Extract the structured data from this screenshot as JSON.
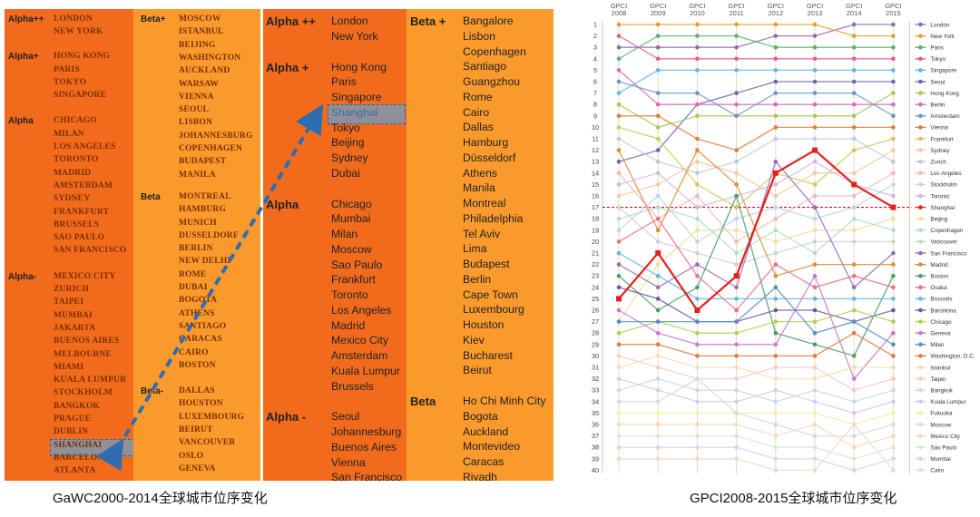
{
  "gawc": {
    "caption": "GaWC2000-2014全球城市位序变化",
    "y2000": {
      "col1": [
        {
          "tier": "Alpha++",
          "cities": [
            "LONDON",
            "NEW YORK"
          ]
        },
        {
          "tier": "Alpha+",
          "cities": [
            "HONG KONG",
            "PARIS",
            "TOKYO",
            "SINGAPORE"
          ]
        },
        {
          "tier": "Alpha",
          "cities": [
            "CHICAGO",
            "MILAN",
            "LOS ANGELES",
            "TORONTO",
            "MADRID",
            "AMSTERDAM",
            "SYDNEY",
            "FRANKFURT",
            "BRUSSELS",
            "SAO PAULO",
            "SAN FRANCISCO"
          ]
        },
        {
          "tier": "Alpha-",
          "cities": [
            "MEXICO CITY",
            "ZURICH",
            "TAIPEI",
            "MUMBAI",
            "JAKARTA",
            "BUENOS AIRES",
            "MELBOURNE",
            "MIAMI",
            "KUALA LUMPUR",
            "STOCKHOLM",
            "BANGKOK",
            "PRAGUE",
            "DUBLIN",
            "SHANGHAI",
            "BARCELONA",
            "ATLANTA"
          ]
        }
      ],
      "col2": [
        {
          "tier": "Beta+",
          "cities": [
            "MOSCOW",
            "ISTANBUL",
            "BEIJING",
            "WASHINGTON",
            "AUCKLAND",
            "WARSAW",
            "VIENNA",
            "SEOUL",
            "LISBON",
            "JOHANNESBURG",
            "COPENHAGEN",
            "BUDAPEST",
            "MANILA"
          ]
        },
        {
          "tier": "Beta",
          "cities": [
            "MONTREAL",
            "HAMBURG",
            "MUNICH",
            "DUSSELDORF",
            "BERLIN",
            "NEW DELHI",
            "ROME",
            "DUBAI",
            "BOGOTA",
            "ATHENS",
            "SANTIAGO",
            "CARACAS",
            "CAIRO",
            "BOSTON"
          ]
        },
        {
          "tier": "Beta-",
          "cities": [
            "DALLAS",
            "HOUSTON",
            "LUXEMBOURG",
            "BEIRUT",
            "VANCOUVER",
            "OSLO",
            "GENEVA"
          ]
        }
      ]
    },
    "y2014": {
      "col1": [
        {
          "tier": "Alpha ++",
          "cities": [
            "London",
            "New York"
          ]
        },
        {
          "tier": "Alpha +",
          "cities": [
            "Hong Kong",
            "Paris",
            "Singapore",
            "Shanghai",
            "Tokyo",
            "Beijing",
            "Sydney",
            "Dubai"
          ]
        },
        {
          "tier": "Alpha",
          "cities": [
            "Chicago",
            "Mumbai",
            "Milan",
            "Moscow",
            "Sao Paulo",
            "Frankfurt",
            "Toronto",
            "Los Angeles",
            "Madrid",
            "Mexico City",
            "Amsterdam",
            "Kuala Lumpur",
            "Brussels"
          ]
        },
        {
          "tier": "Alpha -",
          "cities": [
            "Seoul",
            "Johannesburg",
            "Buenos Aires",
            "Vienna",
            "San Francisco"
          ]
        }
      ],
      "col2": [
        {
          "tier": "Beta +",
          "cities": [
            "Bangalore",
            "Lisbon",
            "Copenhagen",
            "Santiago",
            "Guangzhou",
            "Rome",
            "Cairo",
            "Dallas",
            "Hamburg",
            "Düsseldorf",
            "Athens",
            "Manila",
            "Montreal",
            "Philadelphia",
            "Tel Aviv",
            "Lima",
            "Budapest",
            "Berlin",
            "Cape Town",
            "Luxembourg",
            "Houston",
            "Kiev",
            "Bucharest",
            "Beirut"
          ]
        },
        {
          "tier": "Beta",
          "cities": [
            "Ho Chi Minh City",
            "Bogota",
            "Auckland",
            "Montevideo",
            "Caracas",
            "Riyadh"
          ]
        }
      ]
    },
    "colors": {
      "dark": "#f26b1d",
      "light": "#fb9a2c",
      "highlight": "#909099",
      "arrow": "#2f6db0"
    }
  },
  "chart_data": {
    "type": "line",
    "caption": "GPCI2008-2015全球城市位序变化",
    "categories": [
      "GPCI 2008",
      "GPCI 2009",
      "GPCI 2010",
      "GPCI 2011",
      "GPCI 2012",
      "GPCI 2013",
      "GPCI 2014",
      "GPCI 2015"
    ],
    "ylim": [
      1,
      40
    ],
    "y_ticks": [
      1,
      2,
      3,
      4,
      5,
      6,
      7,
      8,
      9,
      10,
      11,
      12,
      13,
      14,
      15,
      16,
      17,
      18,
      19,
      20,
      21,
      22,
      23,
      24,
      25,
      26,
      27,
      28,
      29,
      30,
      31,
      32,
      33,
      34,
      35,
      36,
      37,
      38,
      39,
      40
    ],
    "reference_rank": 17,
    "legend_position": "right",
    "series": [
      {
        "name": "London",
        "color": "#8e6bb8",
        "values": [
          3,
          3,
          3,
          3,
          2,
          2,
          1,
          1
        ]
      },
      {
        "name": "New York",
        "color": "#e89a2c",
        "values": [
          1,
          1,
          1,
          1,
          1,
          1,
          2,
          2
        ]
      },
      {
        "name": "Paris",
        "color": "#57b36d",
        "values": [
          4,
          2,
          2,
          2,
          3,
          3,
          3,
          3
        ]
      },
      {
        "name": "Tokyo",
        "color": "#e45d8a",
        "values": [
          2,
          4,
          4,
          4,
          4,
          4,
          4,
          4
        ]
      },
      {
        "name": "Singapore",
        "color": "#5db7e8",
        "values": [
          7,
          5,
          5,
          5,
          5,
          5,
          5,
          5
        ]
      },
      {
        "name": "Seoul",
        "color": "#6a6ab0",
        "values": [
          13,
          12,
          8,
          7,
          6,
          6,
          6,
          6
        ]
      },
      {
        "name": "Hong Kong",
        "color": "#a6c94e",
        "values": [
          8,
          10,
          9,
          9,
          9,
          9,
          9,
          7
        ]
      },
      {
        "name": "Berlin",
        "color": "#d96bb5",
        "values": [
          5,
          8,
          8,
          8,
          8,
          8,
          8,
          8
        ]
      },
      {
        "name": "Amsterdam",
        "color": "#6c95c9",
        "values": [
          6,
          7,
          7,
          9,
          7,
          7,
          7,
          9
        ]
      },
      {
        "name": "Vienna",
        "color": "#e07a3c",
        "values": [
          9,
          9,
          11,
          12,
          10,
          10,
          10,
          10
        ]
      },
      {
        "name": "Frankfurt",
        "color": "#d4c75a",
        "values": [
          10,
          11,
          15,
          17,
          14,
          15,
          12,
          11
        ]
      },
      {
        "name": "Sydney",
        "color": "#f4c9a0",
        "values": [
          16,
          15,
          13,
          14,
          16,
          14,
          14,
          12
        ]
      },
      {
        "name": "Zurich",
        "color": "#c6c6dc",
        "values": [
          11,
          13,
          14,
          13,
          11,
          11,
          11,
          13
        ]
      },
      {
        "name": "Los Angeles",
        "color": "#f2b8b8",
        "values": [
          14,
          18,
          16,
          20,
          18,
          16,
          16,
          14
        ]
      },
      {
        "name": "Stockholm",
        "color": "#bcd4ea",
        "values": [
          19,
          16,
          20,
          18,
          17,
          18,
          17,
          15
        ]
      },
      {
        "name": "Toronto",
        "color": "#ccb8de",
        "values": [
          15,
          14,
          17,
          16,
          15,
          13,
          15,
          16
        ]
      },
      {
        "name": "Shanghai",
        "color": "#e2211c",
        "values": [
          25,
          21,
          26,
          23,
          14,
          12,
          15,
          17
        ]
      },
      {
        "name": "Beijing",
        "color": "#f0dda0",
        "values": [
          27,
          22,
          19,
          19,
          20,
          19,
          19,
          18
        ]
      },
      {
        "name": "Copenhagen",
        "color": "#b0dcc8",
        "values": [
          18,
          17,
          18,
          21,
          19,
          21,
          18,
          19
        ]
      },
      {
        "name": "Vancouver",
        "color": "#cfcfcf",
        "values": [
          17,
          20,
          21,
          22,
          21,
          20,
          20,
          20
        ]
      },
      {
        "name": "San Francisco",
        "color": "#9a6ab8",
        "values": [
          22,
          24,
          22,
          24,
          13,
          17,
          24,
          21
        ]
      },
      {
        "name": "Madrid",
        "color": "#e08a3c",
        "values": [
          12,
          19,
          12,
          15,
          23,
          22,
          22,
          22
        ]
      },
      {
        "name": "Boston",
        "color": "#4a9c6a",
        "values": [
          23,
          26,
          24,
          16,
          28,
          29,
          30,
          23
        ]
      },
      {
        "name": "Osaka",
        "color": "#e56f8e",
        "values": [
          20,
          18,
          23,
          26,
          22,
          24,
          23,
          24
        ]
      },
      {
        "name": "Brussels",
        "color": "#62b5e2",
        "values": [
          21,
          23,
          25,
          25,
          25,
          25,
          25,
          25
        ]
      },
      {
        "name": "Barcelona",
        "color": "#6a58a0",
        "values": [
          24,
          25,
          27,
          27,
          26,
          26,
          27,
          26
        ]
      },
      {
        "name": "Chicago",
        "color": "#b0d050",
        "values": [
          28,
          27,
          28,
          28,
          27,
          27,
          26,
          27
        ]
      },
      {
        "name": "Geneva",
        "color": "#c878c8",
        "values": [
          26,
          28,
          29,
          29,
          29,
          23,
          32,
          28
        ]
      },
      {
        "name": "Milan",
        "color": "#5a8ac8",
        "values": [
          27,
          27,
          27,
          27,
          24,
          28,
          27,
          29
        ]
      },
      {
        "name": "Washington, D.C.",
        "color": "#e07a3c",
        "values": [
          29,
          29,
          30,
          30,
          30,
          30,
          28,
          30
        ]
      },
      {
        "name": "Istanbul",
        "color": "#f0e0b0",
        "values": [
          31,
          30,
          31,
          31,
          32,
          32,
          31,
          31
        ]
      },
      {
        "name": "Taipei",
        "color": "#f8c8c8",
        "values": [
          30,
          31,
          32,
          32,
          31,
          31,
          33,
          32
        ]
      },
      {
        "name": "Bangkok",
        "color": "#c8d8f0",
        "values": [
          33,
          32,
          33,
          33,
          34,
          33,
          34,
          33
        ]
      },
      {
        "name": "Kuala Lumpur",
        "color": "#d8c8e8",
        "values": [
          32,
          33,
          34,
          34,
          33,
          34,
          35,
          34
        ]
      },
      {
        "name": "Fukuoka",
        "color": "#f0f0a0",
        "values": [
          35,
          35,
          35,
          35,
          35,
          35,
          36,
          35
        ]
      },
      {
        "name": "Moscow",
        "color": "#d8d8d8",
        "values": [
          34,
          34,
          32,
          35,
          36,
          37,
          37,
          36
        ]
      },
      {
        "name": "Mexico City",
        "color": "#f8d8b8",
        "values": [
          36,
          36,
          36,
          36,
          37,
          36,
          38,
          37
        ]
      },
      {
        "name": "Sao Paulo",
        "color": "#d8e8d0",
        "values": [
          37,
          37,
          37,
          37,
          38,
          38,
          39,
          38
        ]
      },
      {
        "name": "Mumbai",
        "color": "#e0d0e8",
        "values": [
          38,
          38,
          38,
          38,
          39,
          39,
          40,
          39
        ]
      },
      {
        "name": "Cairo",
        "color": "#f0d8c8",
        "values": [
          39,
          39,
          39,
          39,
          40,
          40,
          36,
          40
        ]
      }
    ]
  }
}
